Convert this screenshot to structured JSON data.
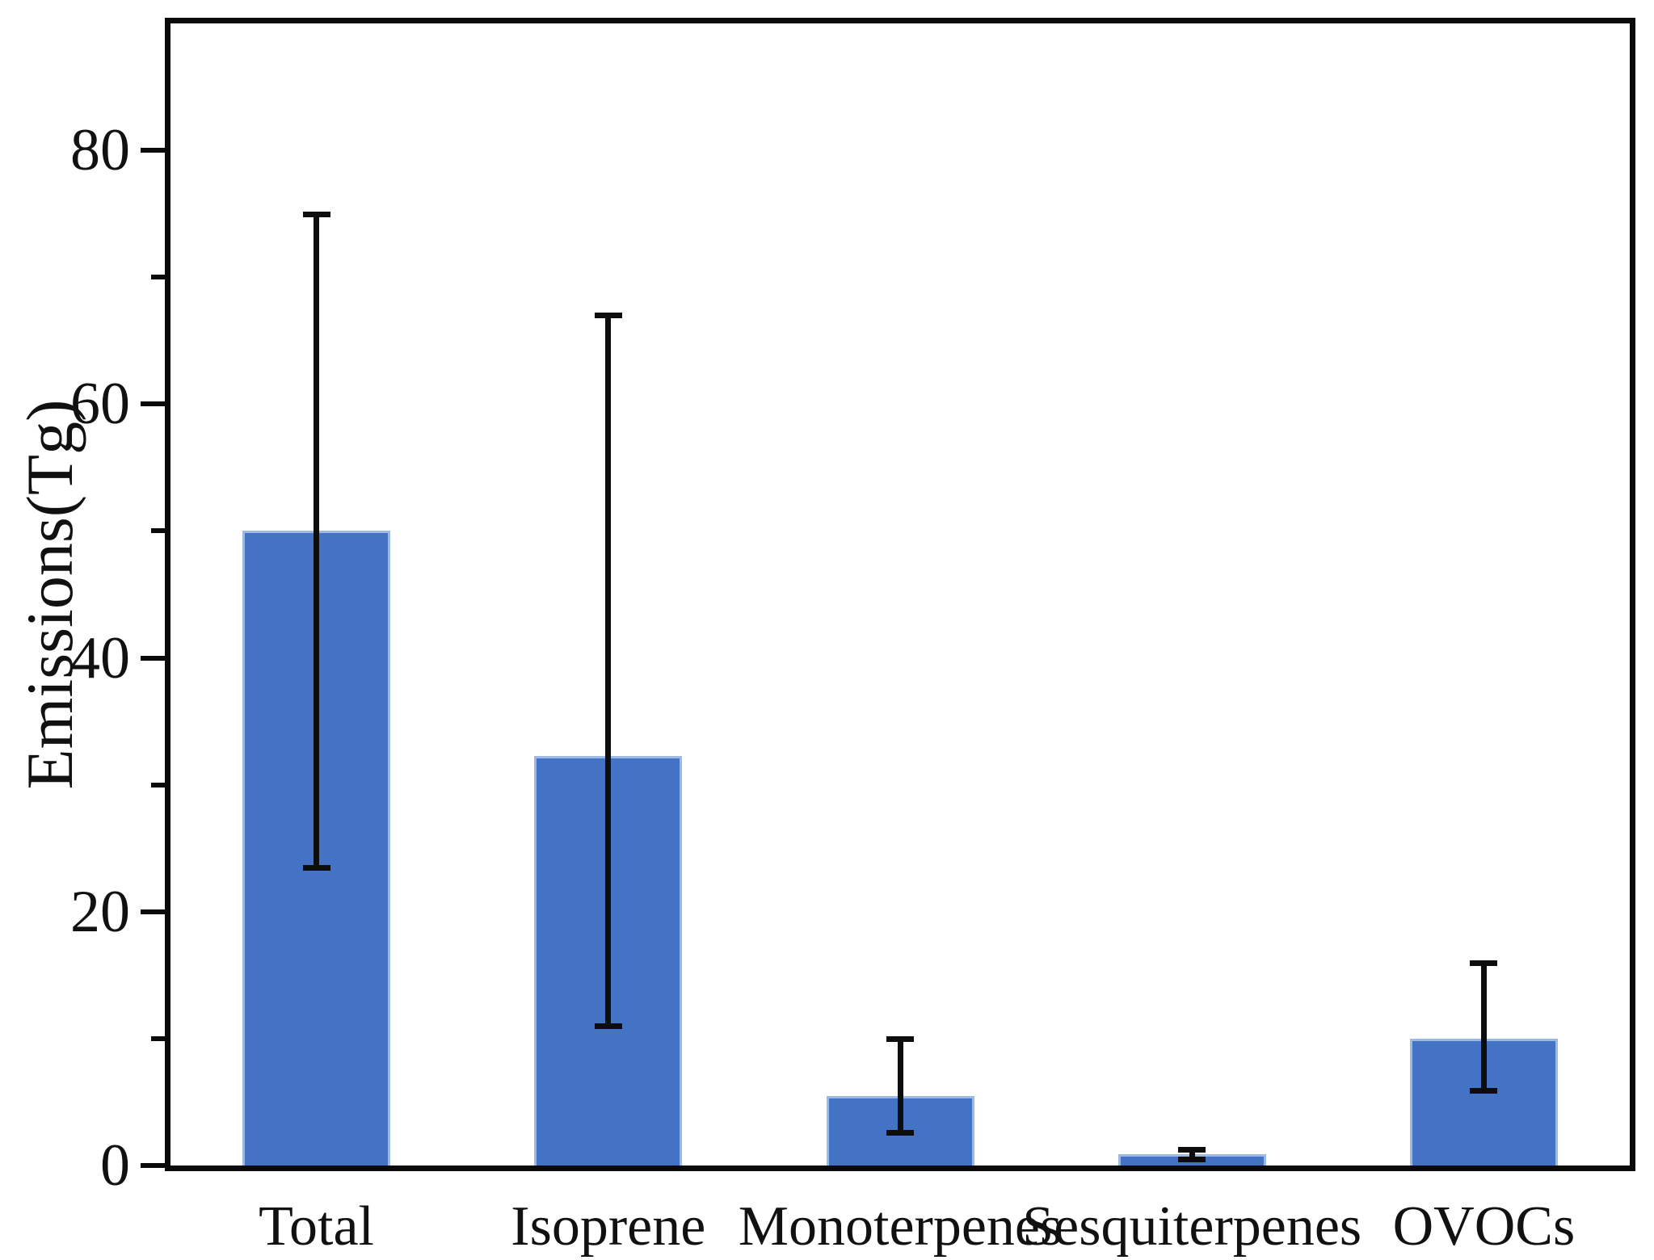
{
  "chart_data": {
    "type": "bar",
    "title": "",
    "ylabel": "Emissions(Tg)",
    "xlabel": "",
    "categories": [
      "Total",
      "Isoprene",
      "Monoterpenes",
      "Sesquiterpenes",
      "OVOCs"
    ],
    "values": [
      50,
      32.3,
      5.5,
      0.9,
      10
    ],
    "series": [
      {
        "name": "Emissions",
        "values": [
          50,
          32.3,
          5.5,
          0.9,
          10
        ],
        "error_cap_high": [
          75,
          67,
          10,
          1.3,
          16
        ],
        "error_cap_low": [
          23.5,
          11,
          2.6,
          0.5,
          5.9
        ]
      }
    ],
    "ylim": [
      0,
      90
    ],
    "yticks_major": [
      0,
      20,
      40,
      60,
      80
    ],
    "yticks_minor": [
      10,
      30,
      50,
      70
    ],
    "grid": false,
    "legend": null,
    "colors": {
      "bar_fill": "#4472C4",
      "bar_edge": "#9DB9E5",
      "error_bar": "#0d0d0d",
      "axis": "#0a0a0a",
      "text": "#111111"
    }
  }
}
